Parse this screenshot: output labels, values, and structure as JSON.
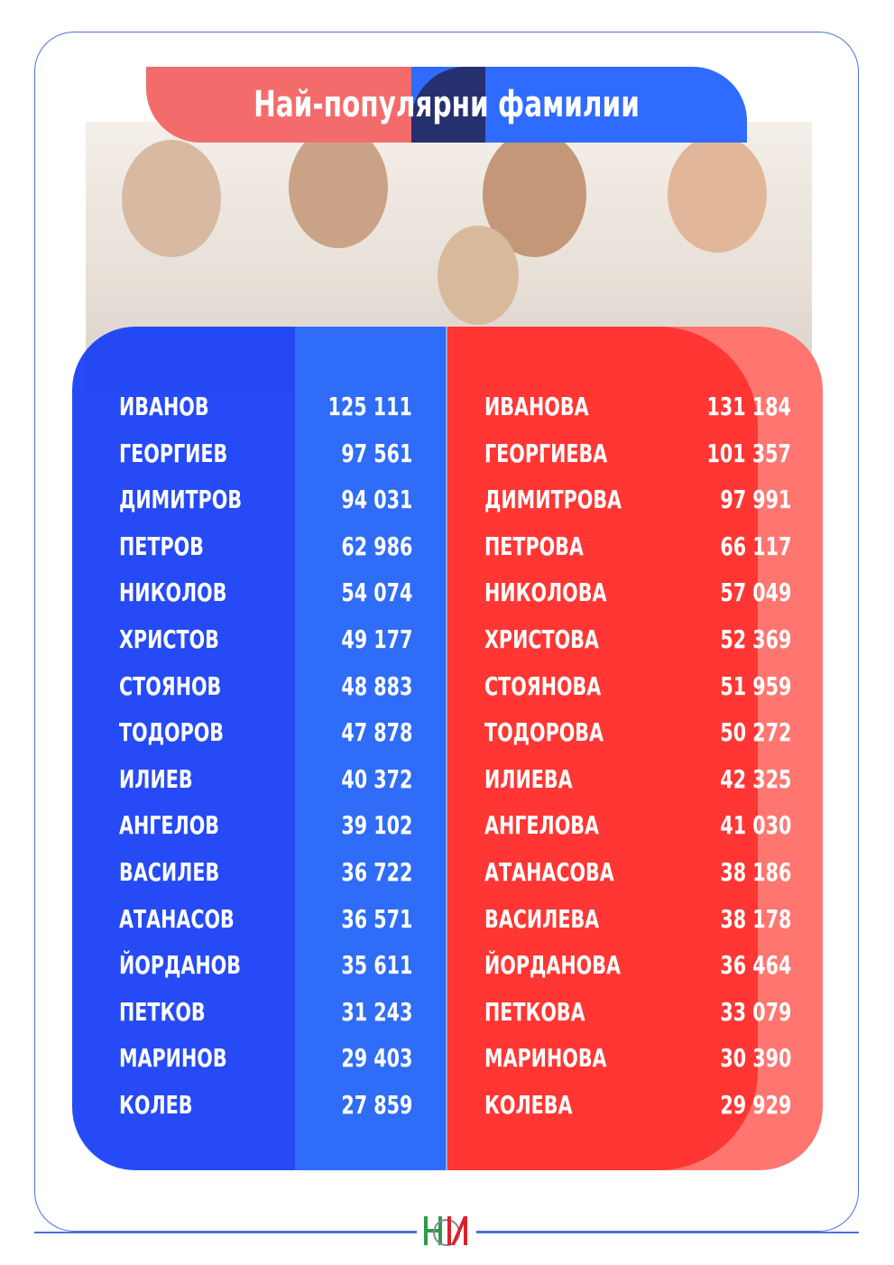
{
  "title": "Най-популярни фамилии",
  "colors": {
    "male_name_bg": "#1c43f6",
    "male_num_bg": "#2f6cf7",
    "female_name_bg": "#ff3633",
    "female_num_bg": "#ff7670",
    "title_red": "#f46b6b",
    "title_blue": "#2f6bff",
    "frame": "#4a73e0"
  },
  "male": [
    {
      "name": "ИВАНОВ",
      "count": "125 111"
    },
    {
      "name": "ГЕОРГИЕВ",
      "count": "97 561"
    },
    {
      "name": "ДИМИТРОВ",
      "count": "94 031"
    },
    {
      "name": "ПЕТРОВ",
      "count": "62 986"
    },
    {
      "name": "НИКОЛОВ",
      "count": "54 074"
    },
    {
      "name": "ХРИСТОВ",
      "count": "49 177"
    },
    {
      "name": "СТОЯНОВ",
      "count": "48 883"
    },
    {
      "name": "ТОДОРОВ",
      "count": "47 878"
    },
    {
      "name": "ИЛИЕВ",
      "count": "40 372"
    },
    {
      "name": "АНГЕЛОВ",
      "count": "39 102"
    },
    {
      "name": "ВАСИЛЕВ",
      "count": "36 722"
    },
    {
      "name": "АТАНАСОВ",
      "count": "36 571"
    },
    {
      "name": "ЙОРДАНОВ",
      "count": "35 611"
    },
    {
      "name": "ПЕТКОВ",
      "count": "31 243"
    },
    {
      "name": "МАРИНОВ",
      "count": "29 403"
    },
    {
      "name": "КОЛЕВ",
      "count": "27 859"
    }
  ],
  "female": [
    {
      "name": "ИВАНОВА",
      "count": "131 184"
    },
    {
      "name": "ГЕОРГИЕВА",
      "count": "101 357"
    },
    {
      "name": "ДИМИТРОВА",
      "count": "97 991"
    },
    {
      "name": "ПЕТРОВА",
      "count": "66 117"
    },
    {
      "name": "НИКОЛОВА",
      "count": "57 049"
    },
    {
      "name": "ХРИСТОВА",
      "count": "52 369"
    },
    {
      "name": "СТОЯНОВА",
      "count": "51 959"
    },
    {
      "name": "ТОДОРОВА",
      "count": "50 272"
    },
    {
      "name": "ИЛИЕВА",
      "count": "42 325"
    },
    {
      "name": "АНГЕЛОВА",
      "count": "41 030"
    },
    {
      "name": "АТАНАСОВА",
      "count": "38 186"
    },
    {
      "name": "ВАСИЛЕВА",
      "count": "38 178"
    },
    {
      "name": "ЙОРДАНОВА",
      "count": "36 464"
    },
    {
      "name": "ПЕТКОВА",
      "count": "33 079"
    },
    {
      "name": "МАРИНОВА",
      "count": "30 390"
    },
    {
      "name": "КОЛЕВА",
      "count": "29 929"
    }
  ],
  "logo": {
    "label": "НСИ"
  }
}
